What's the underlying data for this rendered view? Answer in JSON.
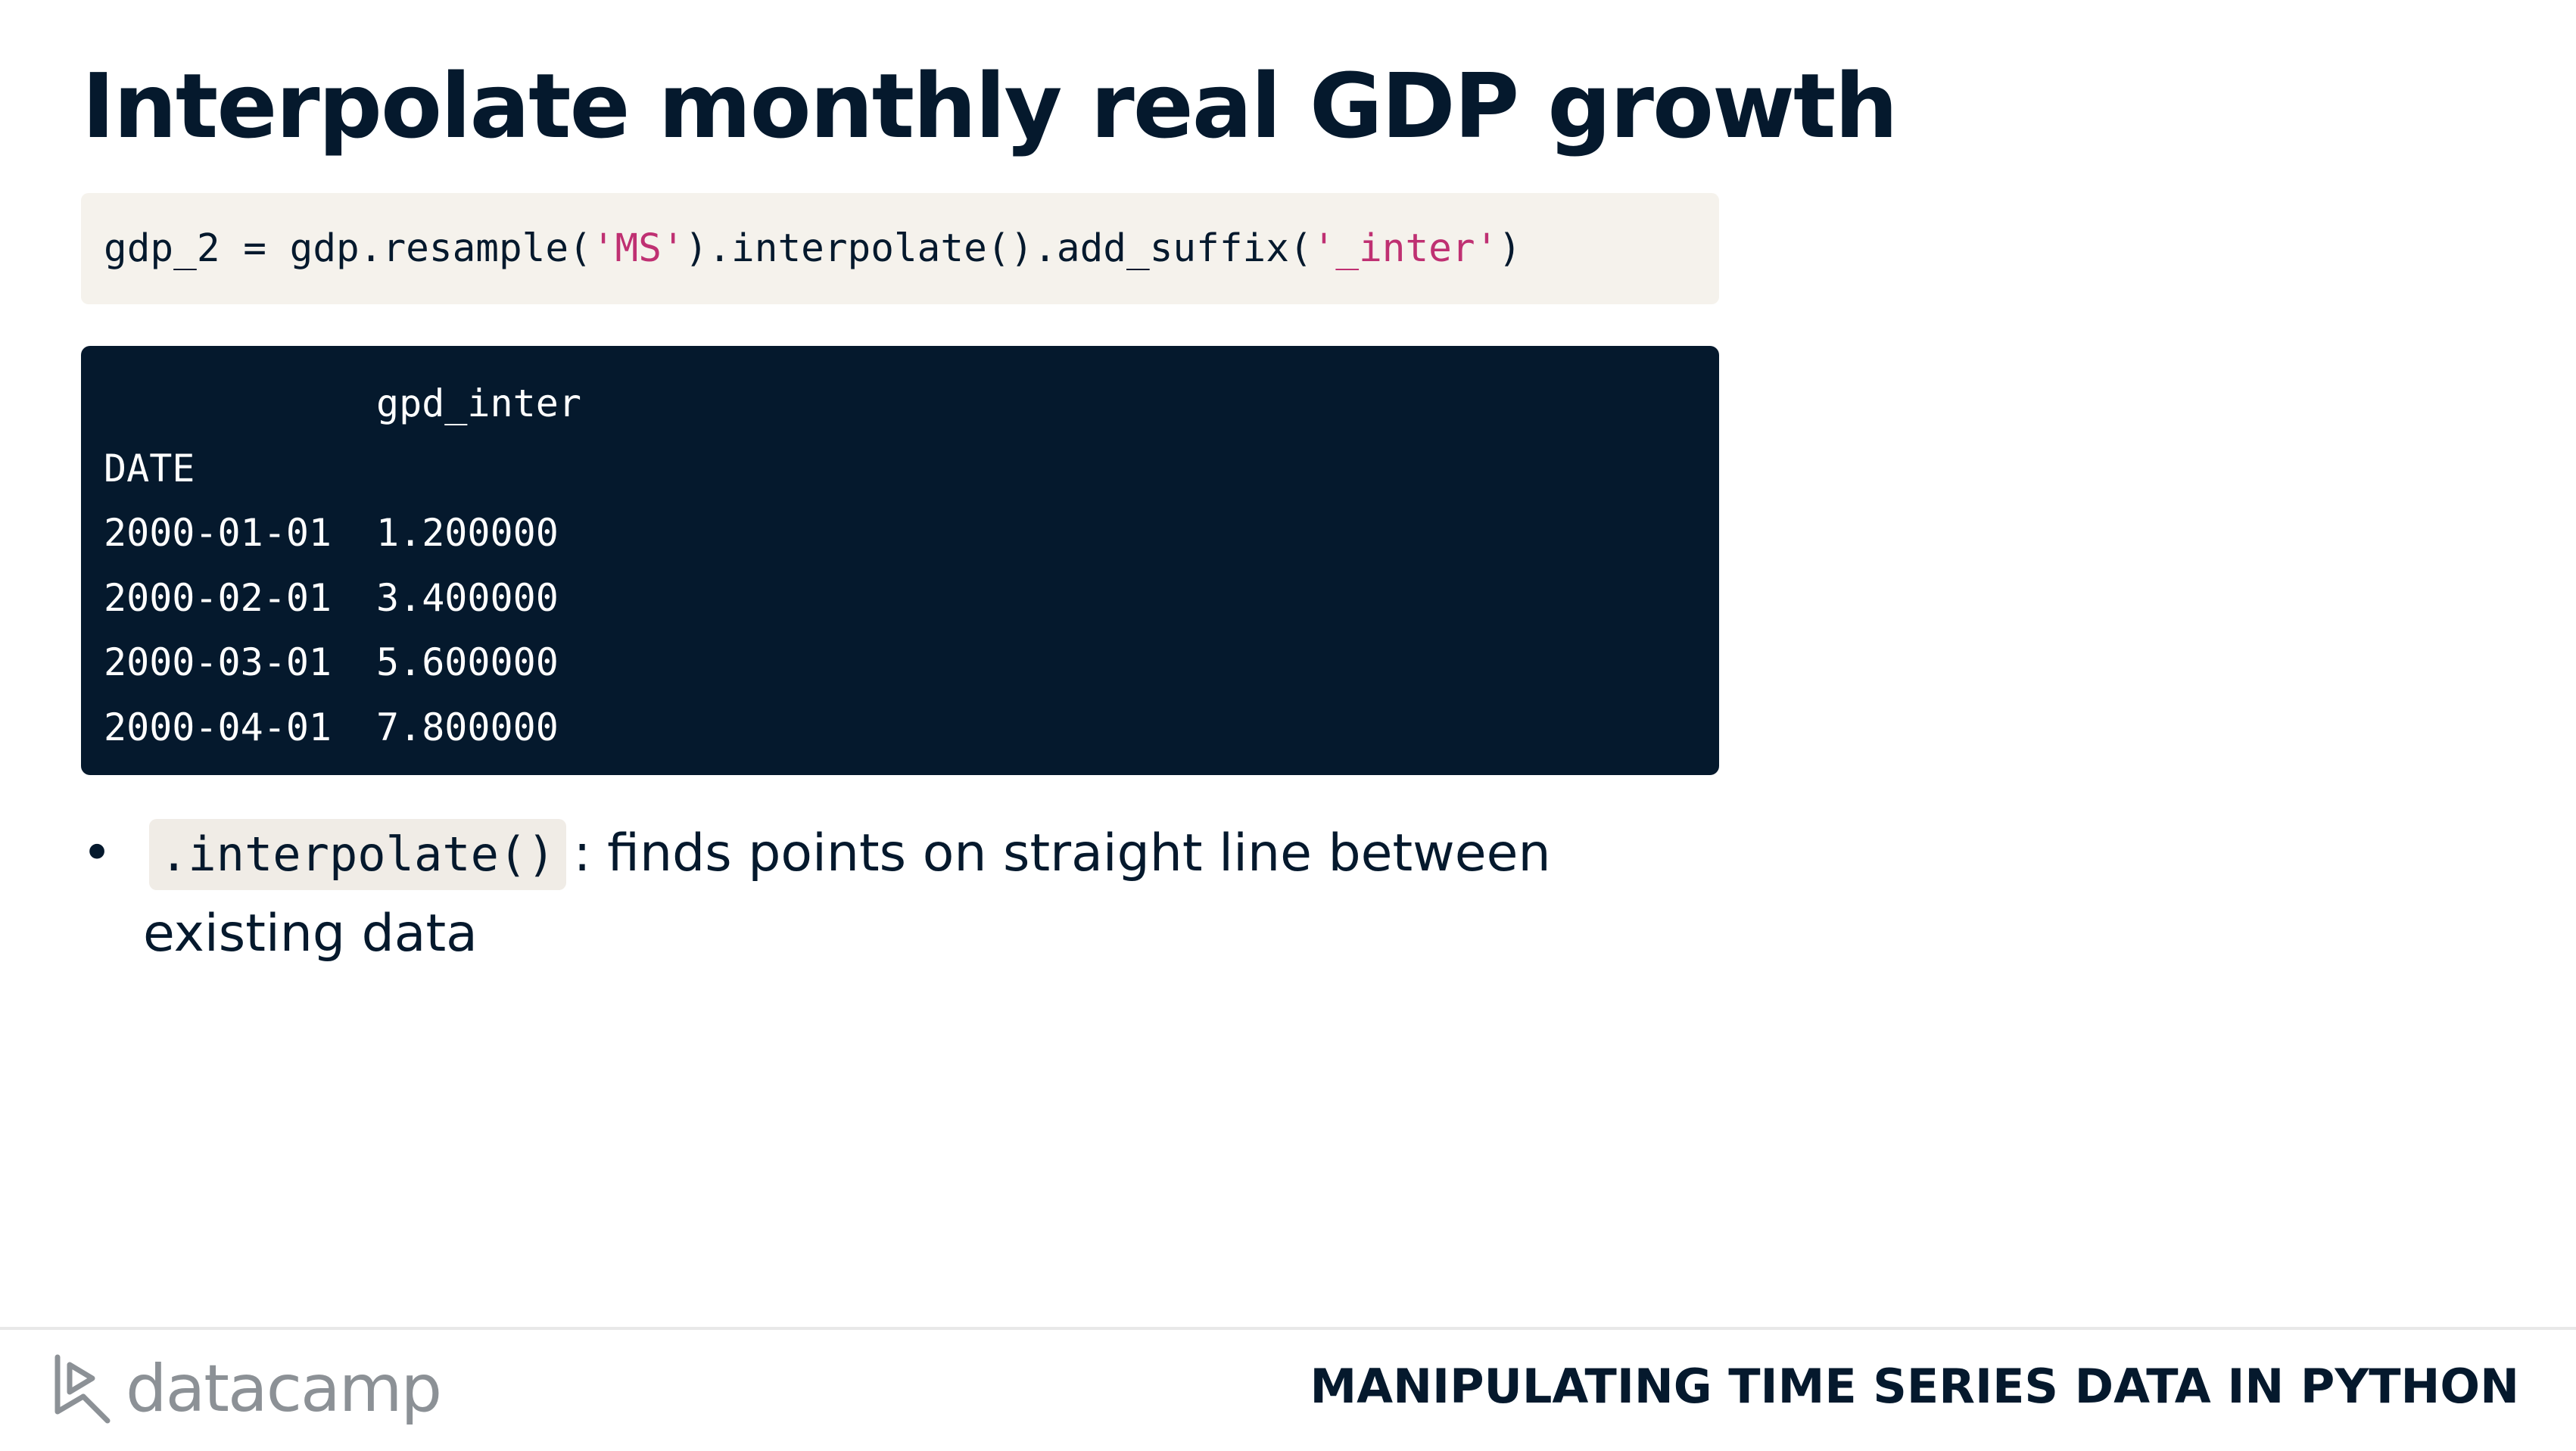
{
  "slide": {
    "title": "Interpolate monthly real GDP growth"
  },
  "code_input": {
    "part1": "gdp_2 = gdp.resample(",
    "str1": "'MS'",
    "part2": ").interpolate().add_suffix(",
    "str2": "'_inter'",
    "part3": ")"
  },
  "code_output": {
    "column_header": "gpd_inter",
    "index_name": "DATE",
    "rows": [
      {
        "index": "2000-01-01",
        "value": "1.200000"
      },
      {
        "index": "2000-02-01",
        "value": "3.400000"
      },
      {
        "index": "2000-03-01",
        "value": "5.600000"
      },
      {
        "index": "2000-04-01",
        "value": "7.800000"
      }
    ]
  },
  "bullets": [
    {
      "symbol": "•",
      "code": ".interpolate()",
      "text": ": finds points on straight line between existing data"
    }
  ],
  "footer": {
    "logo_text": "datacamp",
    "course_title": "MANIPULATING TIME SERIES DATA IN PYTHON"
  },
  "colors": {
    "text_dark": "#05192d",
    "code_bg": "#f5f2ec",
    "output_bg": "#05192d",
    "string_color": "#bf3072",
    "logo_gray": "#8c9196"
  }
}
